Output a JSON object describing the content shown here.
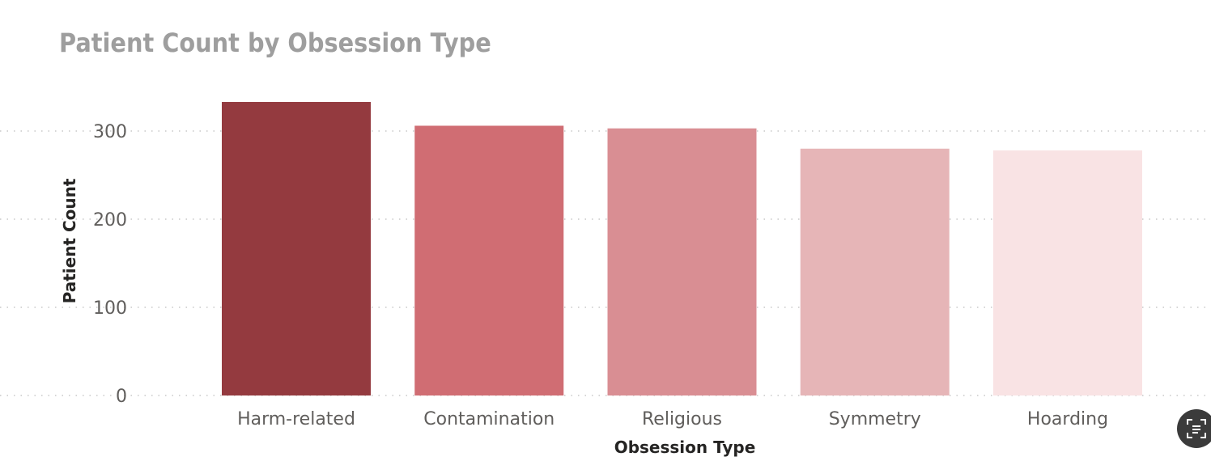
{
  "title": "Patient Count by Obsession Type",
  "chart_data": {
    "type": "bar",
    "title": "Patient Count by Obsession Type",
    "xlabel": "Obsession Type",
    "ylabel": "Patient Count",
    "categories": [
      "Harm-related",
      "Contamination",
      "Religious",
      "Symmetry",
      "Hoarding"
    ],
    "values": [
      333,
      306,
      303,
      280,
      278
    ],
    "colors": [
      "#943a3f",
      "#d06d73",
      "#d98e93",
      "#e6b5b7",
      "#f9e3e4"
    ],
    "yticks": [
      0,
      100,
      200,
      300
    ],
    "ylim": [
      0,
      335
    ],
    "grid": "horizontal dotted",
    "legend": "none"
  },
  "icons": {
    "focus_mode": "focus-mode-icon"
  }
}
